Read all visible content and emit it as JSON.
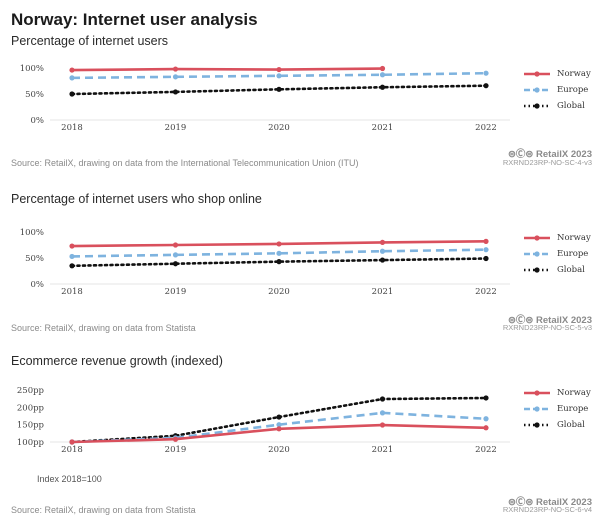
{
  "page_title": "Norway: Internet user analysis",
  "colors": {
    "Norway": "#d9505d",
    "Europe": "#7eb3df",
    "Global": "#111111"
  },
  "brand": "⊜Ⓒ⊜ RetailX 2023",
  "chart_data": [
    {
      "type": "line",
      "title": "Percentage of internet users",
      "x": [
        "2018",
        "2019",
        "2020",
        "2021",
        "2022"
      ],
      "y_ticks": [
        "0%",
        "50%",
        "100%"
      ],
      "ylim": [
        0,
        100
      ],
      "series": [
        {
          "name": "Norway",
          "values": [
            96,
            98,
            97,
            99,
            null
          ]
        },
        {
          "name": "Europe",
          "values": [
            81,
            83,
            85,
            87,
            90
          ]
        },
        {
          "name": "Global",
          "values": [
            50,
            54,
            59,
            63,
            66
          ]
        }
      ],
      "legend": "right",
      "source": "Source: RetailX, drawing on data from the International Telecommunication Union (ITU)",
      "code": "RXRND23RP-NO-SC-4-v3"
    },
    {
      "type": "line",
      "title": "Percentage of internet users who shop online",
      "x": [
        "2018",
        "2019",
        "2020",
        "2021",
        "2022"
      ],
      "y_ticks": [
        "0%",
        "50%",
        "100%"
      ],
      "ylim": [
        0,
        100
      ],
      "series": [
        {
          "name": "Norway",
          "values": [
            73,
            75,
            77,
            80,
            82
          ]
        },
        {
          "name": "Europe",
          "values": [
            53,
            56,
            59,
            63,
            66
          ]
        },
        {
          "name": "Global",
          "values": [
            35,
            39,
            43,
            46,
            49
          ]
        }
      ],
      "legend": "right",
      "source": "Source: RetailX, drawing on data from Statista",
      "code": "RXRND23RP-NO-SC-5-v3"
    },
    {
      "type": "line",
      "title": "Ecommerce revenue growth (indexed)",
      "x": [
        "2018",
        "2019",
        "2020",
        "2021",
        "2022"
      ],
      "y_ticks": [
        "100pp",
        "150pp",
        "200pp",
        "250pp"
      ],
      "ylim": [
        100,
        250
      ],
      "series": [
        {
          "name": "Norway",
          "values": [
            100,
            108,
            138,
            149,
            141
          ]
        },
        {
          "name": "Europe",
          "values": [
            100,
            112,
            150,
            184,
            167
          ]
        },
        {
          "name": "Global",
          "values": [
            100,
            118,
            172,
            224,
            227
          ]
        }
      ],
      "legend": "right",
      "note": "Index 2018=100",
      "source": "Source: RetailX, drawing on data from Statista",
      "code": "RXRND23RP-NO-SC-6-v4"
    }
  ]
}
